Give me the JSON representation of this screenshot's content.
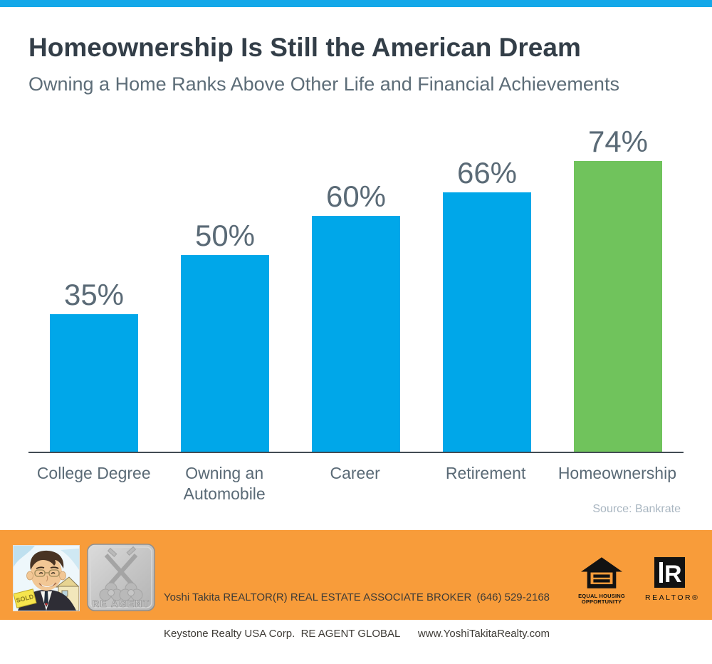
{
  "colors": {
    "top_strip": "#14a8e9",
    "bar_blue": "#00a7e9",
    "bar_green": "#70c35c",
    "title": "#333e48",
    "subtitle": "#5d6d78",
    "label_gray": "#5a6a76",
    "source_gray": "#a9b6c1",
    "footer_orange": "#f89c3a"
  },
  "header": {
    "title": "Homeownership Is Still the American Dream",
    "subtitle": "Owning a Home Ranks Above Other Life and Financial Achievements"
  },
  "chart_data": {
    "type": "bar",
    "title": "Homeownership Is Still the American Dream",
    "subtitle": "Owning a Home Ranks Above Other Life and Financial Achievements",
    "categories": [
      "College Degree",
      "Owning an Automobile",
      "Career",
      "Retirement",
      "Homeownership"
    ],
    "values": [
      35,
      50,
      60,
      66,
      74
    ],
    "value_labels": [
      "35%",
      "50%",
      "60%",
      "66%",
      "74%"
    ],
    "bar_colors": [
      "#00a7e9",
      "#00a7e9",
      "#00a7e9",
      "#00a7e9",
      "#70c35c"
    ],
    "highlight_index": 4,
    "xlabel": "",
    "ylabel": "",
    "ylim": [
      0,
      80
    ],
    "grid": false,
    "legend": false,
    "source": "Source: Bankrate"
  },
  "source": {
    "label": "Source: Bankrate"
  },
  "footer": {
    "line1_left": "Yoshi Takita REALTOR(R) REAL ESTATE ASSOCIATE BROKER",
    "line2_left": "Keystone Realty USA Corp.  RE AGENT GLOBAL",
    "line1_right": "(646) 529-2168",
    "line2_right": "www.YoshiTakitaRealty.com",
    "re_agent_label": "RE AGENT",
    "sold_sign": "SOLD",
    "eh_line1": "EQUAL HOUSING",
    "eh_line2": "OPPORTUNITY",
    "realtor_label": "REALTOR®"
  }
}
